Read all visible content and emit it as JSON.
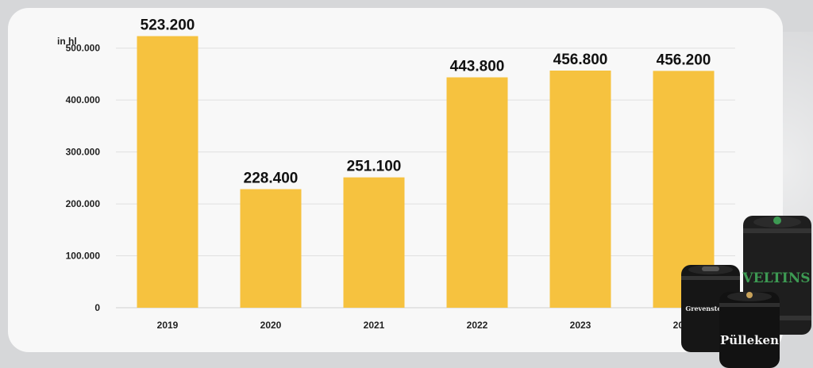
{
  "chart_data": {
    "type": "bar",
    "ylabel": "in hl",
    "categories": [
      "2019",
      "2020",
      "2021",
      "2022",
      "2023",
      "2024"
    ],
    "values": [
      523200,
      228400,
      251100,
      443800,
      456800,
      456200
    ],
    "value_labels": [
      "523.200",
      "228.400",
      "251.100",
      "443.800",
      "456.800",
      "456.200"
    ],
    "yticks": [
      0,
      100000,
      200000,
      300000,
      400000,
      500000
    ],
    "ytick_labels": [
      "0",
      "100.000",
      "200.000",
      "300.000",
      "400.000",
      "500.000"
    ],
    "ylim": [
      0,
      550000
    ],
    "grid": true,
    "bar_color": "#f6c23f"
  },
  "kegs": {
    "brands": [
      "VELTINS",
      "Grevensteiner",
      "Pülleken"
    ],
    "colors": {
      "body": "#1c1c1c",
      "brand_green": "#3d9a53"
    }
  }
}
